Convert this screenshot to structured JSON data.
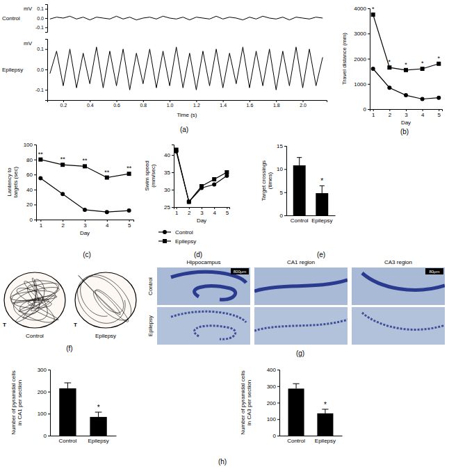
{
  "chart_data": [
    {
      "type": "line",
      "panel": "(a)",
      "x_label": "Time (s)",
      "y_label": "mV",
      "x": [
        0.1,
        0.15,
        0.2,
        0.25,
        0.3,
        0.35,
        0.4,
        0.45,
        0.5,
        0.55,
        0.6,
        0.65,
        0.7,
        0.75,
        0.8,
        0.85,
        0.9,
        0.95,
        1.0,
        1.05,
        1.1,
        1.15,
        1.2,
        1.25,
        1.3,
        1.35,
        1.4,
        1.45,
        1.5,
        1.55,
        1.6,
        1.65,
        1.7,
        1.75,
        1.8,
        1.85,
        1.9,
        1.95,
        2.0,
        2.05,
        2.1,
        2.15
      ],
      "xlim": [
        0.08,
        2.18
      ],
      "xticks": [
        0.2,
        0.4,
        0.6,
        0.8,
        {
          "value": 1,
          "label": "1.0"
        },
        1.2,
        1.4,
        1.6,
        1.8,
        {
          "value": 2,
          "label": "2.0"
        }
      ],
      "series": [
        {
          "name": "Control",
          "color": "#000000",
          "ylim": [
            -0.15,
            0.15
          ],
          "yticks": [
            -0.1,
            {
              "value": 0,
              "label": "0.0"
            },
            0.1
          ],
          "values": [
            -0.01,
            0.01,
            0,
            0.02,
            -0.01,
            0.01,
            -0.02,
            0.01,
            0,
            -0.01,
            0.02,
            -0.01,
            0.01,
            -0.02,
            0,
            0.01,
            -0.01,
            0.02,
            0,
            -0.01,
            0.01,
            -0.02,
            0.01,
            0,
            -0.01,
            0.02,
            -0.01,
            0.01,
            0,
            -0.02,
            0.01,
            -0.01,
            0.02,
            0,
            -0.01,
            0.01,
            -0.02,
            0.01,
            0,
            -0.01,
            0.01,
            0
          ]
        },
        {
          "name": "Epilepsy",
          "color": "#000000",
          "ylim": [
            -0.15,
            0.15
          ],
          "yticks": [
            -0.1,
            {
              "value": 0,
              "label": "0.0"
            },
            0.1
          ],
          "values": [
            -0.02,
            0.09,
            -0.08,
            0.1,
            -0.09,
            0.08,
            -0.07,
            0.11,
            -0.09,
            0.09,
            -0.08,
            0.1,
            -0.1,
            0.08,
            -0.07,
            0.1,
            -0.09,
            0.09,
            -0.08,
            0.11,
            -0.09,
            0.08,
            -0.1,
            0.09,
            -0.08,
            0.1,
            -0.09,
            0.08,
            -0.07,
            0.11,
            -0.09,
            0.09,
            -0.08,
            0.1,
            -0.1,
            0.09,
            -0.08,
            0.11,
            -0.09,
            0.1,
            -0.08,
            0.06
          ]
        }
      ]
    },
    {
      "type": "line",
      "panel": "(b)",
      "x_label": "Day",
      "y_label": "Travel distance (mm)",
      "x": [
        1,
        2,
        3,
        4,
        5
      ],
      "xlim": [
        0.8,
        5.2
      ],
      "xticks": [
        1,
        2,
        3,
        4,
        5
      ],
      "ylim": [
        0,
        4000
      ],
      "yticks": [
        0,
        1000,
        2000,
        3000,
        4000
      ],
      "series": [
        {
          "color": "#000000",
          "marker": "circle",
          "values": [
            1600,
            850,
            550,
            400,
            450
          ]
        },
        {
          "color": "#000000",
          "marker": "square",
          "values": [
            3750,
            1650,
            1550,
            1600,
            1800
          ],
          "significance": [
            "*",
            "*",
            "*",
            "*",
            "*"
          ]
        }
      ]
    },
    {
      "type": "line",
      "panel": "(c)",
      "x_label": "Day",
      "y_label": [
        "Lantency to",
        "targets (sec)"
      ],
      "x": [
        1,
        2,
        3,
        4,
        5
      ],
      "xlim": [
        0.8,
        5.2
      ],
      "xticks": [
        1,
        2,
        3,
        4,
        5
      ],
      "ylim": [
        0,
        100
      ],
      "yticks": [
        0,
        20,
        40,
        60,
        80,
        100
      ],
      "series": [
        {
          "color": "#000000",
          "marker": "circle",
          "values": [
            55,
            34,
            13,
            10,
            12
          ]
        },
        {
          "color": "#000000",
          "marker": "square",
          "values": [
            80,
            73,
            71,
            56,
            61
          ],
          "significance": [
            "**",
            "**",
            "**",
            "**",
            "**"
          ]
        }
      ]
    },
    {
      "type": "line",
      "panel": "(d)",
      "x_label": "Day",
      "y_label": [
        "Swim speed",
        "(mm/sec)"
      ],
      "x": [
        1,
        2,
        3,
        4,
        5
      ],
      "xlim": [
        0.8,
        5.2
      ],
      "xticks": [
        1,
        2,
        3,
        4,
        5
      ],
      "ylim": [
        25,
        43
      ],
      "yticks": [
        25,
        30,
        35,
        40
      ],
      "legend": "bottom",
      "series": [
        {
          "name": "Control",
          "color": "#000000",
          "marker": "circle",
          "values": [
            41,
            26.5,
            30.5,
            31.5,
            34
          ]
        },
        {
          "name": "Epilepsy",
          "color": "#000000",
          "marker": "square",
          "values": [
            41.5,
            26.5,
            31,
            33,
            35
          ]
        }
      ]
    },
    {
      "type": "bar",
      "panel": "(e)",
      "y_label": [
        "Target crossings",
        "(times)"
      ],
      "categories": [
        "Control",
        "Epilepsy"
      ],
      "values": [
        10.8,
        4.8
      ],
      "errors": [
        1.7,
        1.6
      ],
      "significance": [
        null,
        "*"
      ],
      "color": "#000000",
      "ylim": [
        0,
        15
      ],
      "yticks": [
        0,
        5,
        10,
        15
      ]
    },
    {
      "type": "bar",
      "panel": "(h)",
      "y_label": [
        "Number of pyramidal cells",
        "in CA1 per section"
      ],
      "categories": [
        "Control",
        "Epilepsy"
      ],
      "values": [
        215,
        85
      ],
      "errors": [
        25,
        22
      ],
      "significance": [
        null,
        "*"
      ],
      "color": "#000000",
      "ylim": [
        0,
        300
      ],
      "yticks": [
        0,
        100,
        200,
        300
      ]
    },
    {
      "type": "bar",
      "y_label": [
        "Number of pyramidal cells",
        "in CA3 per section"
      ],
      "categories": [
        "Control",
        "Epilepsy"
      ],
      "values": [
        285,
        135
      ],
      "errors": [
        30,
        25
      ],
      "significance": [
        null,
        "*"
      ],
      "color": "#000000",
      "ylim": [
        0,
        400
      ],
      "yticks": [
        0,
        100,
        200,
        300,
        400
      ]
    }
  ],
  "figure_panels": {
    "f": {
      "panel": "(f)",
      "groups": [
        {
          "label": "Control",
          "target": "T"
        },
        {
          "label": "Epilepsy",
          "target": "T"
        }
      ]
    },
    "g": {
      "panel": "(g)",
      "columns": [
        "Hippocampus",
        "CA1 region",
        "CA3 region"
      ],
      "rows": [
        "Control",
        "Epilepsy"
      ],
      "scale_bars": [
        "800μm",
        null,
        "80μm"
      ]
    }
  }
}
